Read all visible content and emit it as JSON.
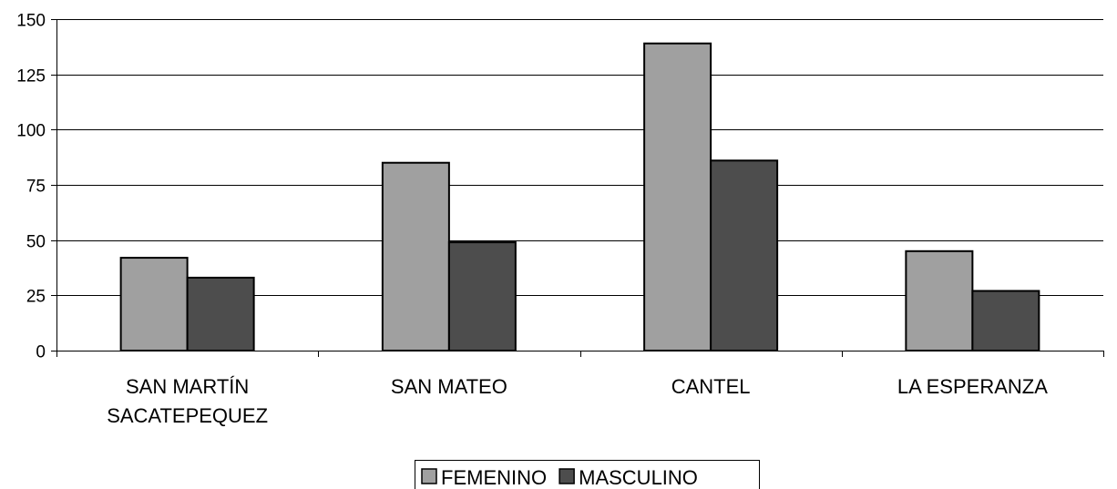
{
  "chart_data": {
    "type": "bar",
    "categories": [
      [
        "SAN MARTÍN",
        "SACATEPEQUEZ"
      ],
      [
        "SAN MATEO"
      ],
      [
        "CANTEL"
      ],
      [
        "LA ESPERANZA"
      ]
    ],
    "series": [
      {
        "name": "FEMENINO",
        "color": "#a0a0a0",
        "values": [
          42,
          85,
          139,
          45
        ]
      },
      {
        "name": "MASCULINO",
        "color": "#4d4d4d",
        "values": [
          33,
          49,
          86,
          27
        ]
      }
    ],
    "ylim": [
      0,
      150
    ],
    "yticks": [
      0,
      25,
      50,
      75,
      100,
      125,
      150
    ],
    "grid": true,
    "legend_position": "bottom-center"
  }
}
